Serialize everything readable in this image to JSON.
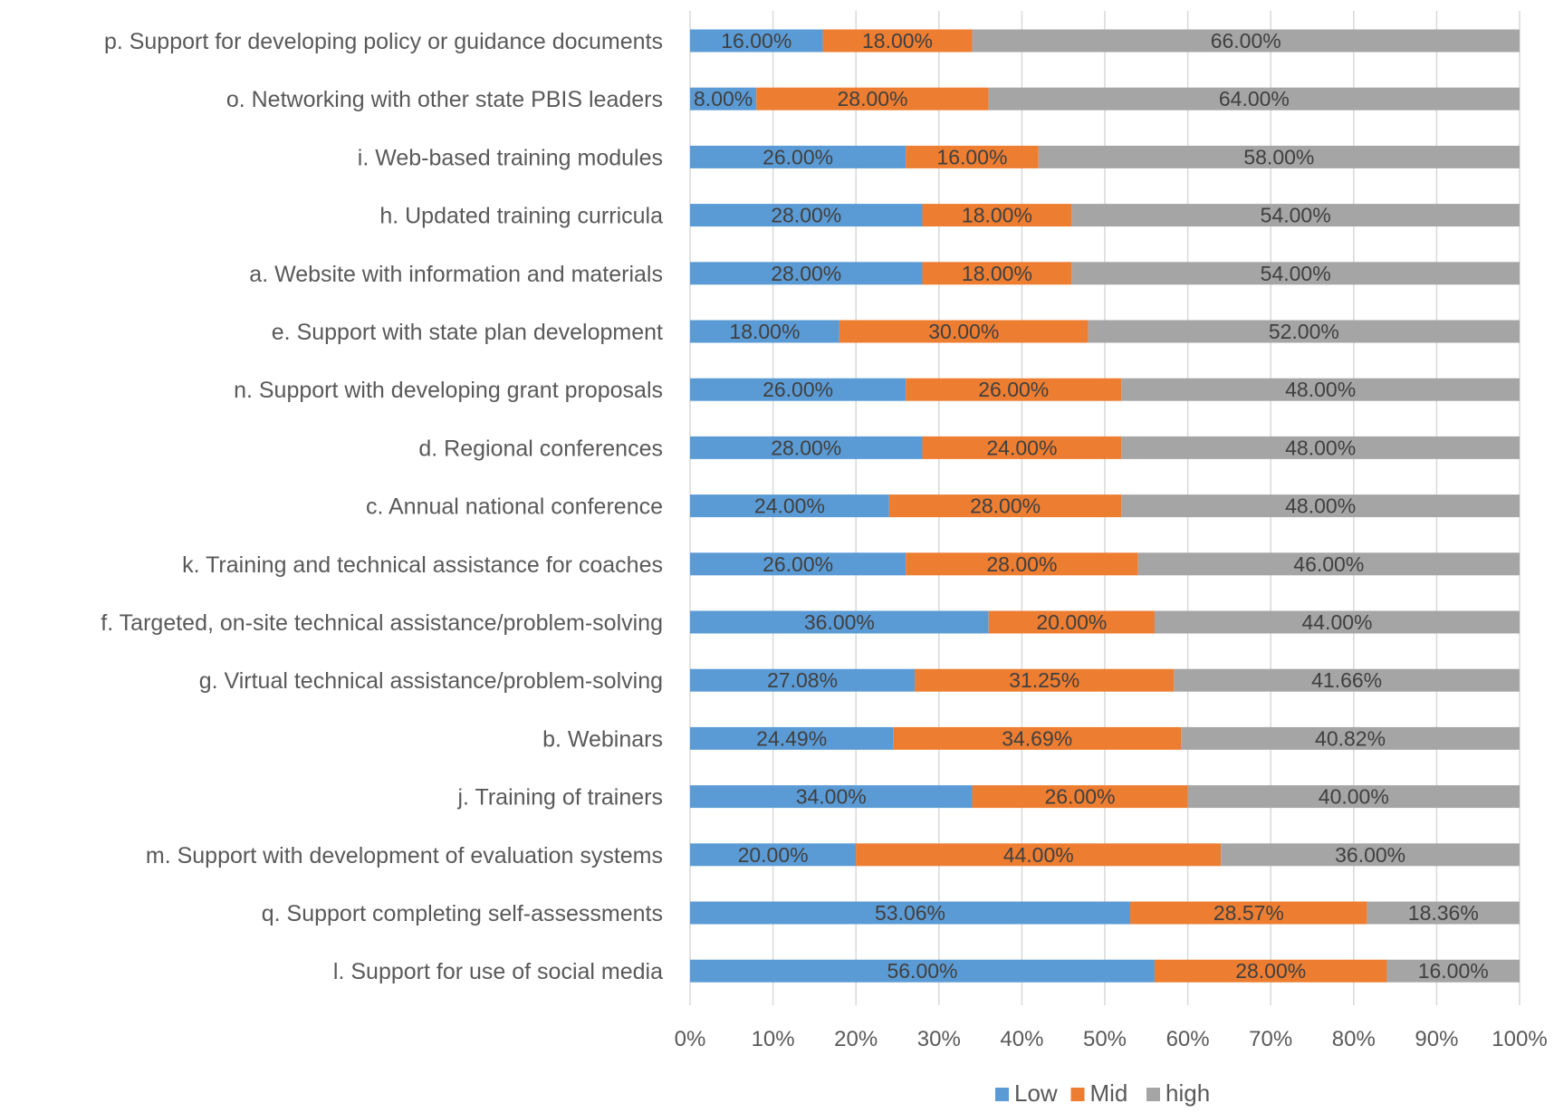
{
  "chart_data": {
    "type": "bar",
    "orientation": "horizontal",
    "stacked": "percent",
    "title": "",
    "xlabel": "",
    "ylabel": "",
    "xlim": [
      0,
      100
    ],
    "x_ticks": [
      "0%",
      "10%",
      "20%",
      "30%",
      "40%",
      "50%",
      "60%",
      "70%",
      "80%",
      "90%",
      "100%"
    ],
    "grid": true,
    "legend_position": "bottom",
    "categories": [
      "p. Support for developing policy or guidance documents",
      "o. Networking with other state PBIS leaders",
      "i. Web-based training modules",
      "h. Updated training curricula",
      "a. Website with information and materials",
      "e. Support with state plan development",
      "n. Support with developing grant proposals",
      "d. Regional conferences",
      "c. Annual national conference",
      "k. Training and technical assistance for coaches",
      "f. Targeted, on-site technical assistance/problem-solving",
      "g. Virtual technical assistance/problem-solving",
      "b. Webinars",
      "j. Training of trainers",
      "m. Support with development of evaluation systems",
      "q. Support completing self-assessments",
      "l. Support for use of social media"
    ],
    "series": [
      {
        "name": "Low",
        "color": "#5B9BD5",
        "values": [
          16.0,
          8.0,
          26.0,
          28.0,
          28.0,
          18.0,
          26.0,
          28.0,
          24.0,
          26.0,
          36.0,
          27.08,
          24.49,
          34.0,
          20.0,
          53.06,
          56.0
        ],
        "labels": [
          "16.00%",
          "8.00%",
          "26.00%",
          "28.00%",
          "28.00%",
          "18.00%",
          "26.00%",
          "28.00%",
          "24.00%",
          "26.00%",
          "36.00%",
          "27.08%",
          "24.49%",
          "34.00%",
          "20.00%",
          "53.06%",
          "56.00%"
        ]
      },
      {
        "name": "Mid",
        "color": "#ED7D31",
        "values": [
          18.0,
          28.0,
          16.0,
          18.0,
          18.0,
          30.0,
          26.0,
          24.0,
          28.0,
          28.0,
          20.0,
          31.25,
          34.69,
          26.0,
          44.0,
          28.57,
          28.0
        ],
        "labels": [
          "18.00%",
          "28.00%",
          "16.00%",
          "18.00%",
          "18.00%",
          "30.00%",
          "26.00%",
          "24.00%",
          "28.00%",
          "28.00%",
          "20.00%",
          "31.25%",
          "34.69%",
          "26.00%",
          "44.00%",
          "28.57%",
          "28.00%"
        ]
      },
      {
        "name": "high",
        "color": "#A5A5A5",
        "values": [
          66.0,
          64.0,
          58.0,
          54.0,
          54.0,
          52.0,
          48.0,
          48.0,
          48.0,
          46.0,
          44.0,
          41.66,
          40.82,
          40.0,
          36.0,
          18.36,
          16.0
        ],
        "labels": [
          "66.00%",
          "64.00%",
          "58.00%",
          "54.00%",
          "54.00%",
          "52.00%",
          "48.00%",
          "48.00%",
          "48.00%",
          "46.00%",
          "44.00%",
          "41.66%",
          "40.82%",
          "40.00%",
          "36.00%",
          "18.36%",
          "16.00%"
        ]
      }
    ]
  }
}
